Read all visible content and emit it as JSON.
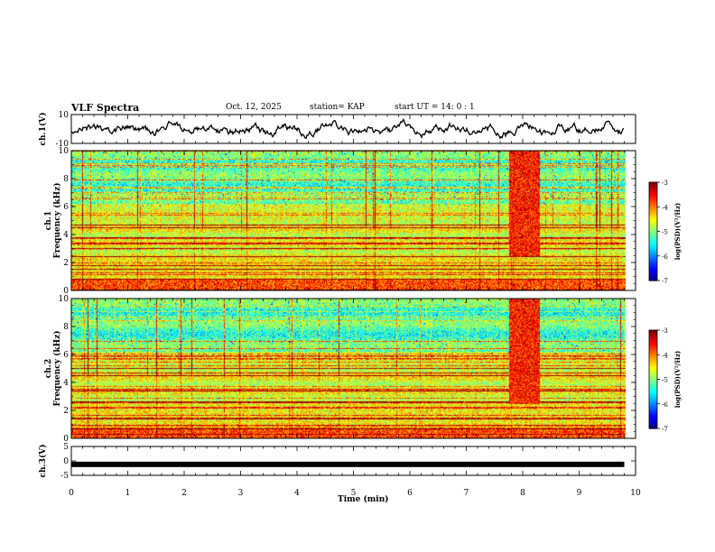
{
  "header": {
    "title": "VLF Spectra",
    "date": "Oct. 12, 2025",
    "station": "station= KAP",
    "start_ut": "start  UT  =   14: 0  : 1"
  },
  "chart_data": {
    "type": "heatmap",
    "xlabel": "Time  (min)",
    "xlim": [
      0,
      10
    ],
    "x_ticks": [
      "0",
      "1",
      "2",
      "3",
      "4",
      "5",
      "6",
      "7",
      "8",
      "9",
      "10"
    ],
    "panels": [
      {
        "id": "ch1-waveform",
        "type": "line",
        "ylabel": "ch.1(V)",
        "ylim": [
          -10,
          10
        ],
        "y_ticks": [
          "10",
          "-10"
        ]
      },
      {
        "id": "ch1-spectrogram",
        "type": "heatmap",
        "ylabel_top": "ch.1",
        "ylabel": "Frequency (kHz)",
        "ylim": [
          0,
          10
        ],
        "y_ticks": [
          "0",
          "2",
          "4",
          "6",
          "8",
          "10"
        ],
        "data_end_min": 9.8,
        "burst_min": [
          7.75,
          8.3
        ],
        "colorbar": {
          "label": "log(PSD)(V²/Hz)",
          "range": [
            -7,
            -3
          ],
          "ticks": [
            "-3",
            "-4",
            "-5",
            "-6",
            "-7"
          ]
        }
      },
      {
        "id": "ch2-spectrogram",
        "type": "heatmap",
        "ylabel_top": "ch.2",
        "ylabel": "Frequency (kHz)",
        "ylim": [
          0,
          10
        ],
        "y_ticks": [
          "0",
          "2",
          "4",
          "6",
          "8",
          "10"
        ],
        "data_end_min": 9.8,
        "burst_min": [
          7.75,
          8.3
        ],
        "colorbar": {
          "label": "log(PSD)(V²/Hz)",
          "range": [
            -7,
            -3
          ],
          "ticks": [
            "-3",
            "-4",
            "-5",
            "-6",
            "-7"
          ]
        }
      },
      {
        "id": "ch3-waveform",
        "type": "line",
        "ylabel": "ch.3(V)",
        "ylim": [
          -5,
          5
        ],
        "y_ticks": [
          "5",
          "0",
          "-5"
        ],
        "constant_value": -1.2
      }
    ]
  }
}
